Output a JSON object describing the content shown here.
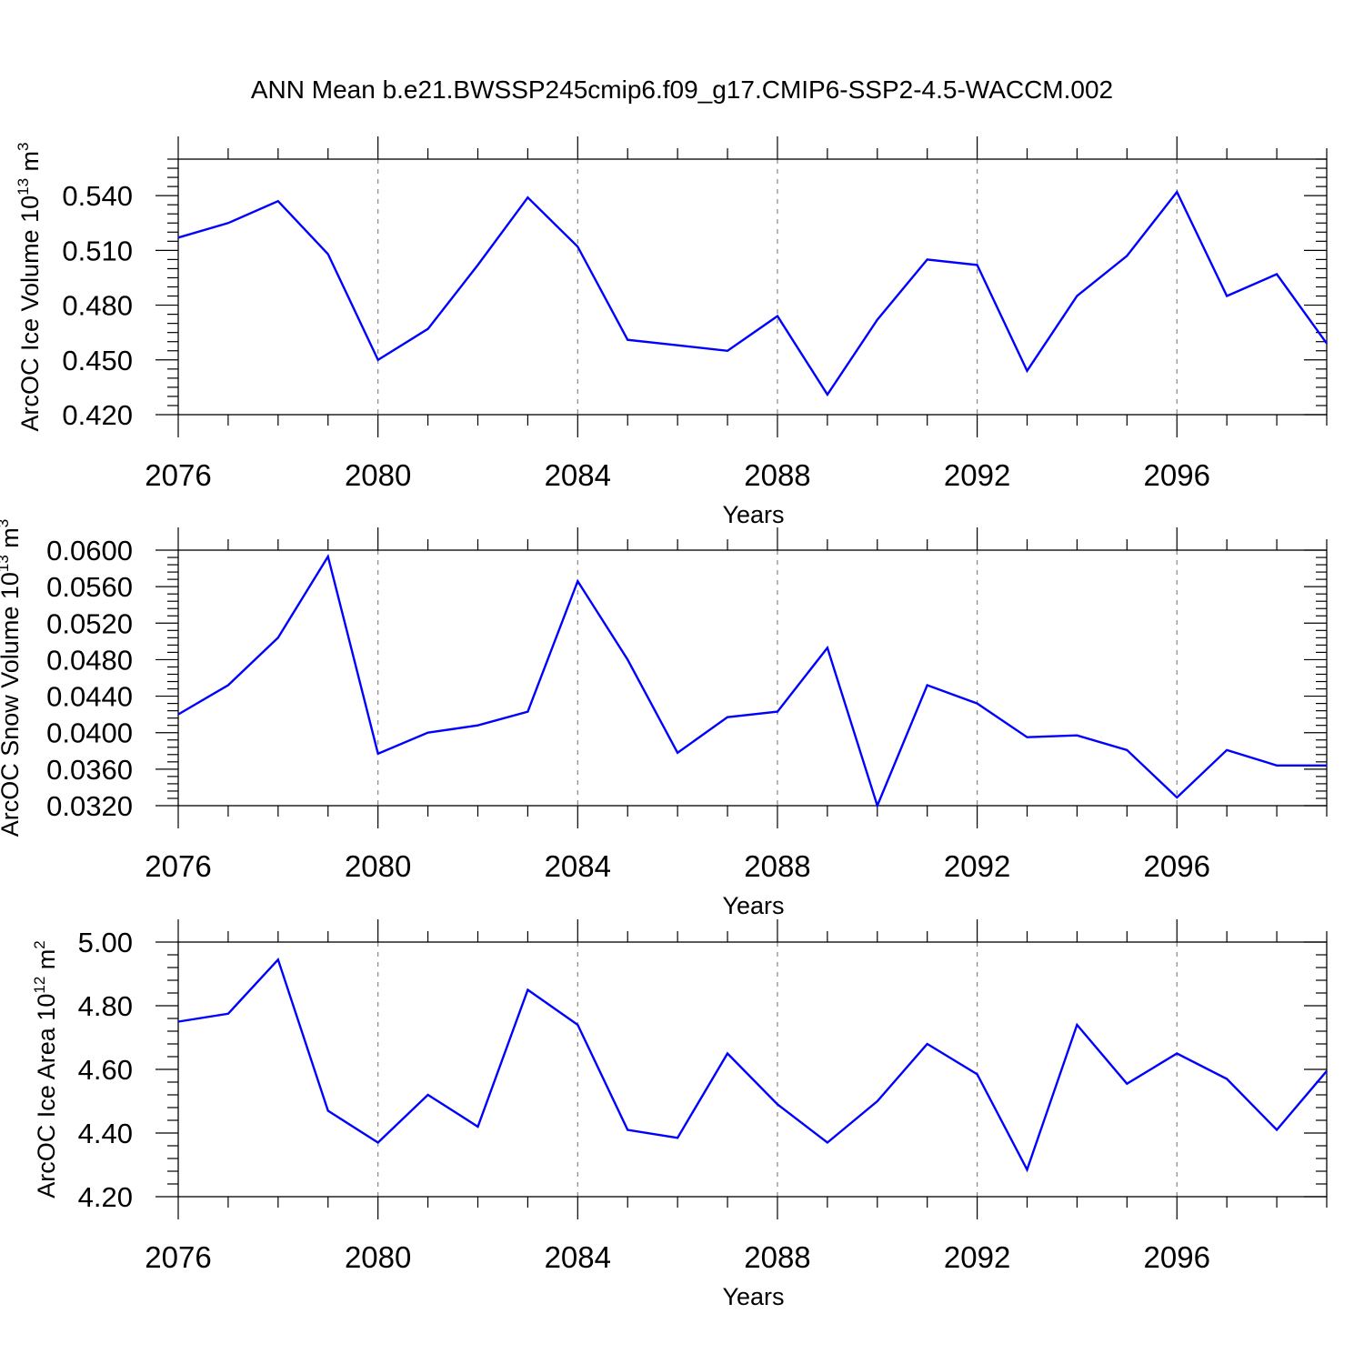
{
  "title": "ANN Mean b.e21.BWSSP245cmip6.f09_g17.CMIP6-SSP2-4.5-WACCM.002",
  "series_color": "#0000ff",
  "chart_data": [
    {
      "type": "line",
      "title": "ANN Mean b.e21.BWSSP245cmip6.f09_g17.CMIP6-SSP2-4.5-WACCM.002",
      "xlabel": "Years",
      "ylabel": "ArcOC Ice Volume 10",
      "ylabel_exp": "13",
      "ylabel_unit": " m",
      "ylabel_unit_exp": "3",
      "x": [
        2076,
        2077,
        2078,
        2079,
        2080,
        2081,
        2082,
        2083,
        2084,
        2085,
        2086,
        2087,
        2088,
        2089,
        2090,
        2091,
        2092,
        2093,
        2094,
        2095,
        2096,
        2097,
        2098,
        2099
      ],
      "values": [
        0.517,
        0.525,
        0.537,
        0.508,
        0.45,
        0.467,
        0.502,
        0.539,
        0.512,
        0.461,
        0.458,
        0.455,
        0.474,
        0.431,
        0.472,
        0.505,
        0.502,
        0.444,
        0.485,
        0.507,
        0.542,
        0.485,
        0.497,
        0.459
      ],
      "xlim": [
        2076,
        2099
      ],
      "ylim": [
        0.42,
        0.56
      ],
      "xticks": [
        "2076",
        "2080",
        "2084",
        "2088",
        "2092",
        "2096"
      ],
      "yticks": [
        "0.420",
        "0.450",
        "0.480",
        "0.510",
        "0.540"
      ],
      "grid": "vertical-dashed"
    },
    {
      "type": "line",
      "xlabel": "Years",
      "ylabel": "ArcOC Snow Volume 10",
      "ylabel_exp": "13",
      "ylabel_unit": " m",
      "ylabel_unit_exp": "3",
      "x": [
        2076,
        2077,
        2078,
        2079,
        2080,
        2081,
        2082,
        2083,
        2084,
        2085,
        2086,
        2087,
        2088,
        2089,
        2090,
        2091,
        2092,
        2093,
        2094,
        2095,
        2096,
        2097,
        2098,
        2099
      ],
      "values": [
        0.042,
        0.0452,
        0.0504,
        0.0593,
        0.0377,
        0.04,
        0.0408,
        0.0423,
        0.0566,
        0.048,
        0.0378,
        0.0417,
        0.0423,
        0.0493,
        0.032,
        0.0452,
        0.0432,
        0.0395,
        0.0397,
        0.0381,
        0.0329,
        0.0381,
        0.0364,
        0.0364
      ],
      "xlim": [
        2076,
        2099
      ],
      "ylim": [
        0.032,
        0.06
      ],
      "xticks": [
        "2076",
        "2080",
        "2084",
        "2088",
        "2092",
        "2096"
      ],
      "yticks": [
        "0.0320",
        "0.0360",
        "0.0400",
        "0.0440",
        "0.0480",
        "0.0520",
        "0.0560",
        "0.0600"
      ],
      "grid": "vertical-dashed"
    },
    {
      "type": "line",
      "xlabel": "Years",
      "ylabel": "ArcOC Ice Area 10",
      "ylabel_exp": "12",
      "ylabel_unit": " m",
      "ylabel_unit_exp": "2",
      "x": [
        2076,
        2077,
        2078,
        2079,
        2080,
        2081,
        2082,
        2083,
        2084,
        2085,
        2086,
        2087,
        2088,
        2089,
        2090,
        2091,
        2092,
        2093,
        2094,
        2095,
        2096,
        2097,
        2098,
        2099
      ],
      "values": [
        4.75,
        4.775,
        4.945,
        4.47,
        4.37,
        4.52,
        4.42,
        4.85,
        4.74,
        4.41,
        4.385,
        4.65,
        4.49,
        4.37,
        4.5,
        4.68,
        4.585,
        4.285,
        4.74,
        4.555,
        4.65,
        4.57,
        4.41,
        4.595
      ],
      "xlim": [
        2076,
        2099
      ],
      "ylim": [
        4.2,
        5.0
      ],
      "xticks": [
        "2076",
        "2080",
        "2084",
        "2088",
        "2092",
        "2096"
      ],
      "yticks": [
        "4.20",
        "4.40",
        "4.60",
        "4.80",
        "5.00"
      ],
      "grid": "vertical-dashed"
    }
  ]
}
